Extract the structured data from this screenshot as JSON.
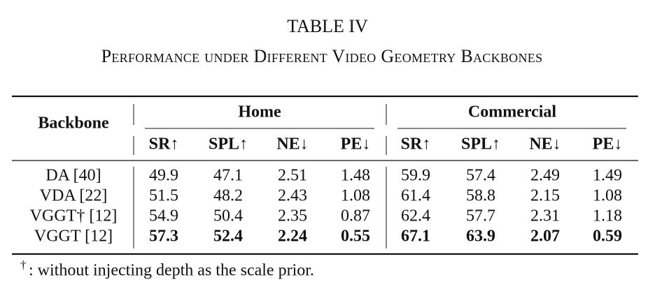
{
  "table": {
    "label": "TABLE IV",
    "caption": "Performance under Different Video Geometry Backbones",
    "row_header": "Backbone",
    "groups": [
      "Home",
      "Commercial"
    ],
    "columns": [
      "SR↑",
      "SPL↑",
      "NE↓",
      "PE↓",
      "SR↑",
      "SPL↑",
      "NE↓",
      "PE↓"
    ],
    "rows": [
      {
        "backbone": "DA [40]",
        "values": [
          49.9,
          47.1,
          2.51,
          1.48,
          59.9,
          57.4,
          2.49,
          1.49
        ]
      },
      {
        "backbone": "VDA [22]",
        "values": [
          51.5,
          48.2,
          2.43,
          1.08,
          61.4,
          58.8,
          2.15,
          1.08
        ]
      },
      {
        "backbone": "VGGT† [12]",
        "values": [
          54.9,
          50.4,
          2.35,
          0.87,
          62.4,
          57.7,
          2.31,
          1.18
        ]
      },
      {
        "backbone": "VGGT [12]",
        "values": [
          57.3,
          52.4,
          2.24,
          0.55,
          67.1,
          63.9,
          2.07,
          0.59
        ],
        "bold": true
      }
    ],
    "footnote": {
      "mark": "†",
      "text": ": without injecting depth as the scale prior."
    }
  }
}
